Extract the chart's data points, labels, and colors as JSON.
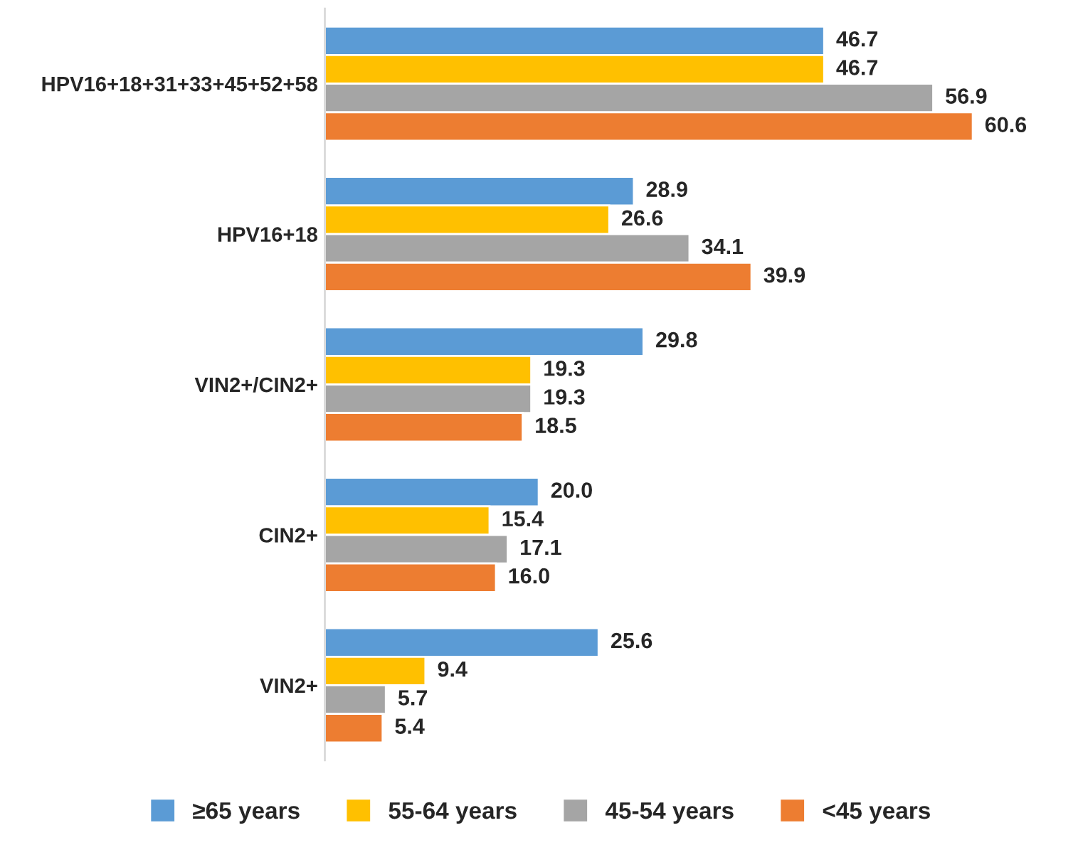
{
  "chart_data": {
    "type": "bar",
    "orientation": "horizontal",
    "categories": [
      "HPV16+18+31+33+45+52+58",
      "HPV16+18",
      "VIN2+/CIN2+",
      "CIN2+",
      "VIN2+"
    ],
    "series": [
      {
        "name": "≥65 years",
        "color": "#5b9bd5",
        "values": [
          46.7,
          28.9,
          29.8,
          20.0,
          25.6
        ],
        "value_labels": [
          "46.7",
          "28.9",
          "29.8",
          "20.0",
          "25.6"
        ]
      },
      {
        "name": "55-64 years",
        "color": "#ffc000",
        "values": [
          46.7,
          26.6,
          19.3,
          15.4,
          9.4
        ],
        "value_labels": [
          "46.7",
          "26.6",
          "19.3",
          "15.4",
          "9.4"
        ]
      },
      {
        "name": "45-54 years",
        "color": "#a5a5a5",
        "values": [
          56.9,
          34.1,
          19.3,
          17.1,
          5.7
        ],
        "value_labels": [
          "56.9",
          "34.1",
          "19.3",
          "17.1",
          "5.7"
        ]
      },
      {
        "name": "<45 years",
        "color": "#ed7d31",
        "values": [
          60.6,
          39.9,
          18.5,
          16.0,
          5.4
        ],
        "value_labels": [
          "60.6",
          "39.9",
          "18.5",
          "16.0",
          "5.4"
        ]
      }
    ],
    "legend": "bottom",
    "grid": false,
    "tick_labels": "y"
  }
}
